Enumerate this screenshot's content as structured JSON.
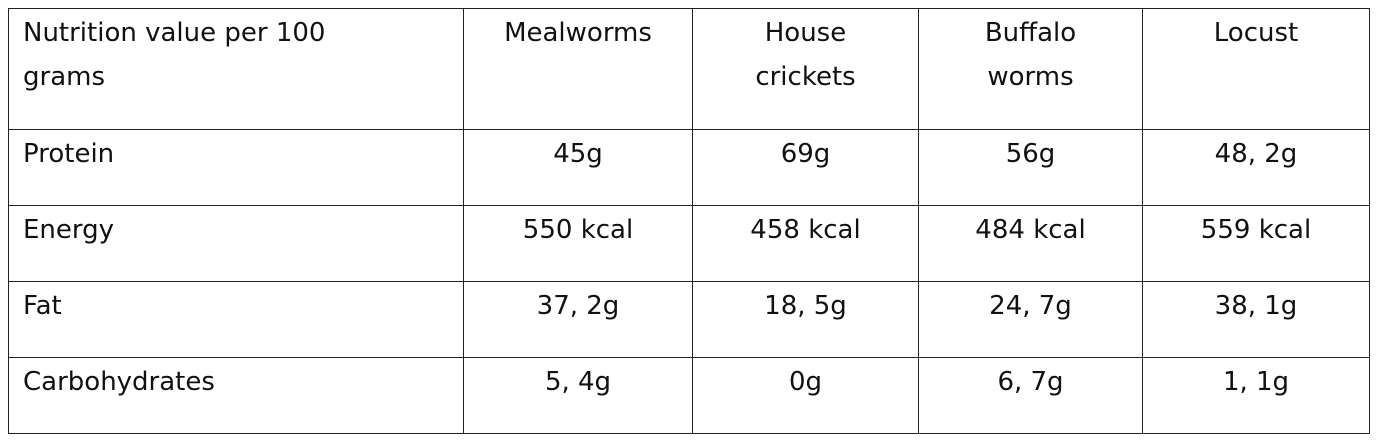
{
  "table": {
    "header": [
      "Nutrition value per 100 grams",
      "Mealworms",
      "House crickets",
      "Buffalo worms",
      "Locust"
    ],
    "rows": [
      [
        "Protein",
        "45g",
        "69g",
        "56g",
        "48, 2g"
      ],
      [
        "Energy",
        "550 kcal",
        "458 kcal",
        "484 kcal",
        "559 kcal"
      ],
      [
        "Fat",
        "37, 2g",
        "18, 5g",
        "24, 7g",
        "38, 1g"
      ],
      [
        "Carbohydrates",
        "5, 4g",
        "0g",
        "6, 7g",
        "1, 1g"
      ]
    ]
  }
}
